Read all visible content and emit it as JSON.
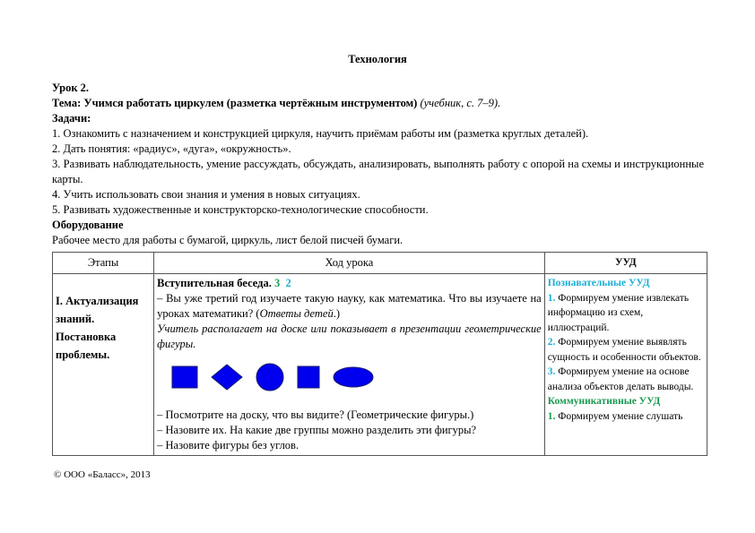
{
  "title": "Технология",
  "lesson": "Урок 2.",
  "topic_label": "Тема:",
  "topic": "Учимся работать циркулем (разметка чертёжным инструментом)",
  "topic_ref": "(учебник, с. 7–9).",
  "tasks_label": "Задачи:",
  "tasks": [
    "1. Ознакомить с назначением и конструкцией циркуля, научить приёмам работы им (разметка круглых деталей).",
    "2. Дать понятия: «радиус», «дуга», «окружность».",
    "3. Развивать наблюдательность, умение рассуждать, обсуждать, анализировать, выполнять работу с опорой на схемы и инструкционные карты.",
    "4. Учить использовать свои знания и умения в новых ситуациях.",
    "5. Развивать художественные и конструкторско-технологические способности."
  ],
  "equipment_label": "Оборудование",
  "equipment": "Рабочее место для работы с бумагой, циркуль, лист белой писчей бумаги.",
  "table": {
    "headers": [
      "Этапы",
      "Ход урока",
      "УУД"
    ],
    "stage": "I. Актуализация знаний. Постановка проблемы.",
    "intro": "Вступительная беседа.",
    "num_green": "3",
    "num_cyan": "2",
    "q1": "– Вы уже третий год изучаете такую науку, как математика. Что вы изучаете на уроках математики? (",
    "q1_italic": "Ответы детей",
    "q1_end": ".)",
    "teacher_note": "Учитель располагает на доске или показывает в презентации геометрические фигуры.",
    "q2": "– Посмотрите на доску, что вы видите? (Геометрические фигуры.)",
    "q3": "– Назовите их. На какие две группы можно разделить эти фигуры?",
    "q4": "– Назовите фигуры без углов.",
    "shape_color": "#0000ee",
    "uud": {
      "cog_title": "Познавательные УУД",
      "cog_items": [
        {
          "n": "1.",
          "t": "Формируем умение извлекать информацию из схем, иллюстраций."
        },
        {
          "n": "2.",
          "t": "Формируем умение выявлять сущность и особенности объектов."
        },
        {
          "n": "3.",
          "t": "Формируем умение на основе анализа объектов делать выводы."
        }
      ],
      "com_title": "Коммуникативные УУД",
      "com_items": [
        {
          "n": "1.",
          "t": "Формируем умение слушать"
        }
      ]
    }
  },
  "footer": "© ООО «Баласс», 2013"
}
